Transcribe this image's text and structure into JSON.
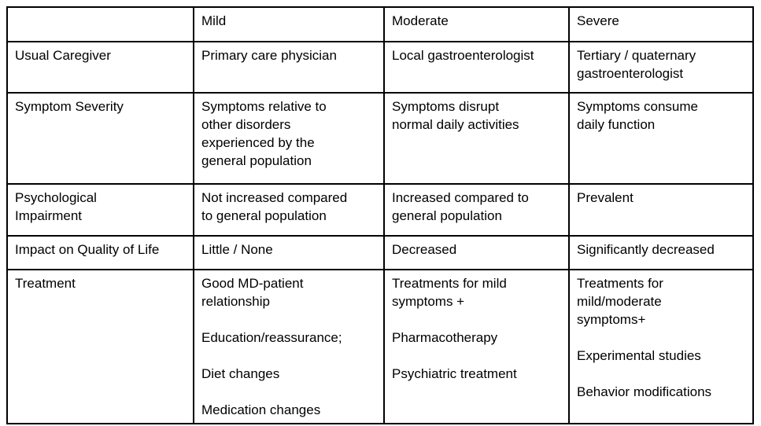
{
  "table": {
    "columns": [
      "",
      "Mild",
      "Moderate",
      "Severe"
    ],
    "rows": [
      {
        "label": "Usual Caregiver",
        "cells": [
          "Primary care physician",
          "Local gastroenterologist",
          "Tertiary / quaternary\ngastroenterologist"
        ]
      },
      {
        "label": "Symptom Severity",
        "cells": [
          "Symptoms relative to\nother disorders\nexperienced by the\ngeneral population",
          "Symptoms disrupt\nnormal daily activities",
          "Symptoms consume\ndaily function"
        ]
      },
      {
        "label": "Psychological\nImpairment",
        "cells": [
          "Not increased compared\nto general population",
          "Increased compared to general population",
          "Prevalent"
        ]
      },
      {
        "label": "Impact on Quality of Life",
        "cells": [
          "Little / None",
          "Decreased",
          "Significantly decreased"
        ]
      },
      {
        "label": "Treatment",
        "cells": [
          "Good MD-patient\nrelationship\n\nEducation/reassurance;\n\nDiet changes\n\nMedication changes",
          "Treatments for mild\nsymptoms +\n\nPharmacotherapy\n\nPsychiatric treatment",
          "Treatments for\nmild/moderate\nsymptoms+\n\nExperimental studies\n\nBehavior modifications"
        ]
      }
    ]
  }
}
